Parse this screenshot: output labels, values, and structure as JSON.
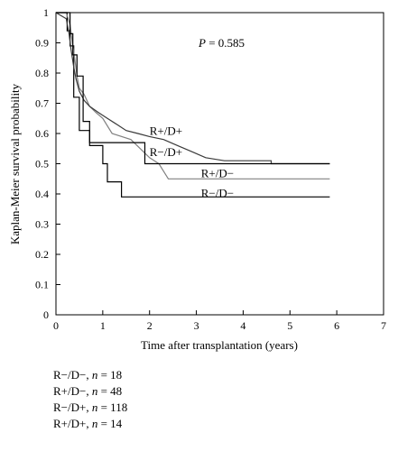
{
  "chart_data": {
    "type": "line",
    "subtype": "kaplan-meier-step",
    "title": "",
    "xlabel": "Time after transplantation (years)",
    "ylabel": "Kaplan-Meier survival probability",
    "xlim": [
      0,
      7
    ],
    "ylim": [
      0,
      1
    ],
    "xticks": [
      "0",
      "1",
      "2",
      "3",
      "4",
      "5",
      "6",
      "7"
    ],
    "yticks": [
      "0",
      "0.1",
      "0.2",
      "0.3",
      "0.4",
      "0.5",
      "0.6",
      "0.7",
      "0.8",
      "0.9",
      "1"
    ],
    "annotation": {
      "prefix": "P",
      "text": " = 0.585"
    },
    "series": [
      {
        "name": "R−/D−",
        "color": "#000000",
        "points": [
          [
            0,
            1
          ],
          [
            0.24,
            1
          ],
          [
            0.24,
            0.94
          ],
          [
            0.3,
            0.94
          ],
          [
            0.3,
            0.89
          ],
          [
            0.38,
            0.89
          ],
          [
            0.38,
            0.72
          ],
          [
            0.5,
            0.72
          ],
          [
            0.5,
            0.61
          ],
          [
            0.72,
            0.61
          ],
          [
            0.72,
            0.56
          ],
          [
            1.0,
            0.56
          ],
          [
            1.0,
            0.5
          ],
          [
            1.1,
            0.5
          ],
          [
            1.1,
            0.44
          ],
          [
            1.4,
            0.44
          ],
          [
            1.4,
            0.39
          ],
          [
            5.85,
            0.39
          ]
        ]
      },
      {
        "name": "R+/D−",
        "color": "#808080",
        "points": [
          [
            0,
            1
          ],
          [
            0.22,
            1
          ],
          [
            0.3,
            0.96
          ],
          [
            0.35,
            0.9
          ],
          [
            0.4,
            0.85
          ],
          [
            0.45,
            0.79
          ],
          [
            0.5,
            0.75
          ],
          [
            0.6,
            0.73
          ],
          [
            0.72,
            0.69
          ],
          [
            0.85,
            0.67
          ],
          [
            1.0,
            0.65
          ],
          [
            1.2,
            0.6
          ],
          [
            1.6,
            0.58
          ],
          [
            2.0,
            0.52
          ],
          [
            2.2,
            0.5
          ],
          [
            2.4,
            0.45
          ],
          [
            5.85,
            0.45
          ]
        ]
      },
      {
        "name": "R−/D+",
        "color": "#3a3a3a",
        "points": [
          [
            0,
            1
          ],
          [
            0.22,
            0.98
          ],
          [
            0.28,
            0.93
          ],
          [
            0.32,
            0.88
          ],
          [
            0.38,
            0.82
          ],
          [
            0.43,
            0.78
          ],
          [
            0.5,
            0.74
          ],
          [
            0.6,
            0.71
          ],
          [
            0.72,
            0.69
          ],
          [
            0.9,
            0.67
          ],
          [
            1.1,
            0.65
          ],
          [
            1.3,
            0.63
          ],
          [
            1.5,
            0.61
          ],
          [
            1.75,
            0.6
          ],
          [
            2.0,
            0.59
          ],
          [
            2.3,
            0.58
          ],
          [
            2.6,
            0.56
          ],
          [
            2.9,
            0.54
          ],
          [
            3.2,
            0.52
          ],
          [
            3.6,
            0.51
          ],
          [
            4.0,
            0.51
          ],
          [
            4.6,
            0.51
          ],
          [
            4.6,
            0.5
          ],
          [
            5.85,
            0.5
          ]
        ]
      },
      {
        "name": "R+/D+",
        "color": "#000000",
        "points": [
          [
            0,
            1
          ],
          [
            0.3,
            1
          ],
          [
            0.3,
            0.93
          ],
          [
            0.36,
            0.93
          ],
          [
            0.36,
            0.86
          ],
          [
            0.45,
            0.86
          ],
          [
            0.45,
            0.79
          ],
          [
            0.58,
            0.79
          ],
          [
            0.58,
            0.64
          ],
          [
            0.72,
            0.64
          ],
          [
            0.72,
            0.57
          ],
          [
            1.9,
            0.57
          ],
          [
            1.9,
            0.5
          ],
          [
            5.85,
            0.5
          ]
        ]
      }
    ],
    "labels": [
      {
        "text": "R+/D+",
        "x": 2.0,
        "y": 0.595
      },
      {
        "text": "R−/D+",
        "x": 2.0,
        "y": 0.525
      },
      {
        "text": "R+/D−",
        "x": 3.1,
        "y": 0.455
      },
      {
        "text": "R−/D−",
        "x": 3.1,
        "y": 0.39
      }
    ],
    "legend": [
      {
        "group": "R−/D−, ",
        "n_label": "n",
        "count": " = 18"
      },
      {
        "group": "R+/D−, ",
        "n_label": "n",
        "count": " = 48"
      },
      {
        "group": "R−/D+, ",
        "n_label": "n",
        "count": " = 118"
      },
      {
        "group": "R+/D+, ",
        "n_label": "n",
        "count": " = 14"
      }
    ]
  }
}
